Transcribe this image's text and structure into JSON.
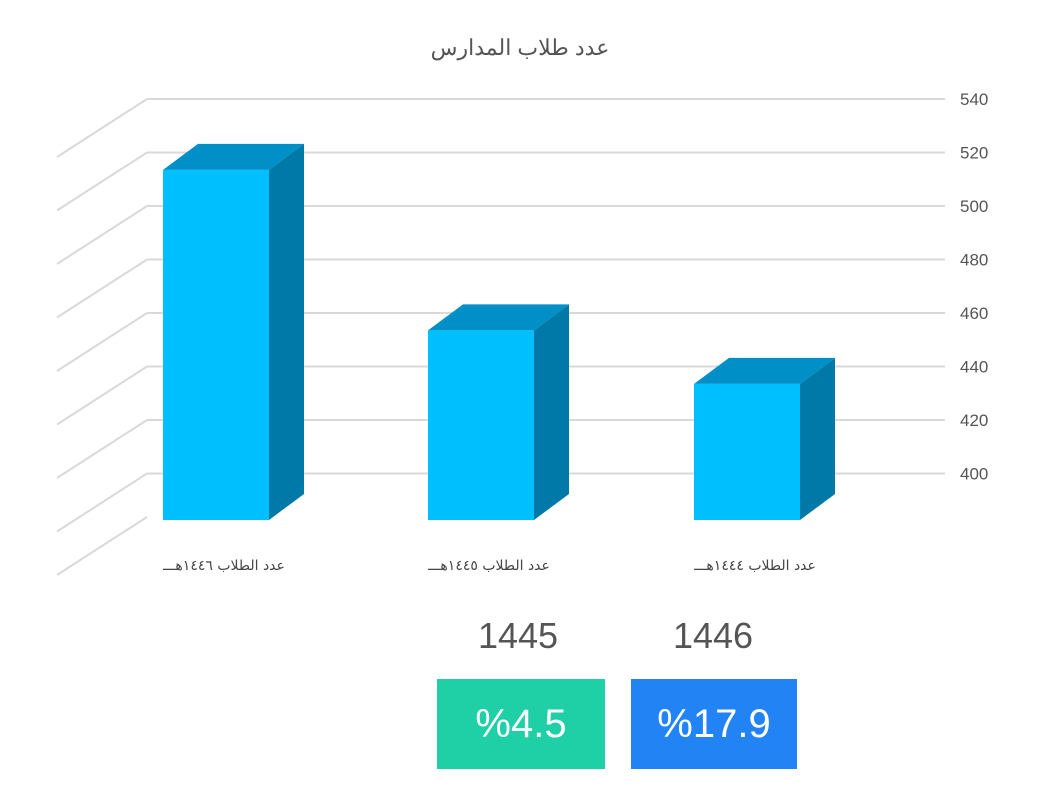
{
  "chart_data": {
    "type": "bar",
    "title": "عدد طلاب المدارس",
    "categories": [
      "عدد الطلاب ١٤٤٦هـــ",
      "عدد الطلاب ١٤٤٥هـــ",
      "عدد الطلاب ١٤٤٤هـــ"
    ],
    "values": [
      512,
      452,
      432
    ],
    "ylim": [
      380,
      540
    ],
    "yticks": [
      400,
      420,
      440,
      460,
      480,
      500,
      520,
      540
    ],
    "grid": true,
    "colors": {
      "front": "#00bfff",
      "top": "#008fc7",
      "side": "#0079a8",
      "grid": "#d9d9d9"
    }
  },
  "stats": [
    {
      "year": "1445",
      "percent": "%4.5",
      "color": "#1fcfa5"
    },
    {
      "year": "1446",
      "percent": "%17.9",
      "color": "#2283f5"
    }
  ]
}
